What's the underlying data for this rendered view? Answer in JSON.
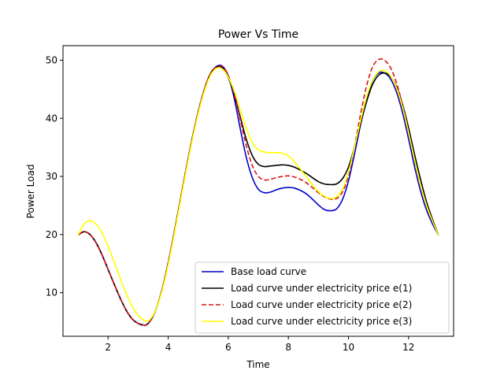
{
  "chart_data": {
    "type": "line",
    "title": "Power Vs Time",
    "xlabel": "Time",
    "ylabel": "Power Load",
    "xlim": [
      0.5,
      13.5
    ],
    "ylim": [
      2.5,
      52.5
    ],
    "xticks": [
      2,
      4,
      6,
      8,
      10,
      12
    ],
    "yticks": [
      10,
      20,
      30,
      40,
      50
    ],
    "grid": false,
    "legend_position": "lower-right",
    "x": [
      1.0,
      1.2,
      1.4,
      1.6,
      1.8,
      2.0,
      2.2,
      2.4,
      2.6,
      2.8,
      3.0,
      3.2,
      3.25,
      3.4,
      3.6,
      3.8,
      4.0,
      4.2,
      4.4,
      4.6,
      4.8,
      5.0,
      5.2,
      5.4,
      5.6,
      5.8,
      6.0,
      6.2,
      6.4,
      6.6,
      6.8,
      7.0,
      7.2,
      7.4,
      7.6,
      7.8,
      8.0,
      8.2,
      8.4,
      8.6,
      8.8,
      9.0,
      9.2,
      9.4,
      9.6,
      9.8,
      10.0,
      10.2,
      10.4,
      10.6,
      10.8,
      11.0,
      11.2,
      11.4,
      11.6,
      11.8,
      12.0,
      12.2,
      12.4,
      12.6,
      12.8,
      13.0
    ],
    "series": [
      {
        "name": "Base load curve",
        "color": "#0000cc",
        "dash": "solid",
        "values": [
          19.9,
          20.5,
          20.0,
          18.6,
          16.5,
          14.0,
          11.5,
          9.1,
          7.0,
          5.5,
          4.7,
          4.4,
          4.4,
          5.1,
          7.2,
          10.6,
          15.1,
          20.3,
          25.8,
          31.3,
          36.5,
          41.1,
          44.9,
          47.6,
          48.9,
          49.0,
          47.3,
          43.4,
          38.2,
          33.3,
          29.8,
          27.8,
          27.2,
          27.3,
          27.7,
          28.0,
          28.1,
          28.0,
          27.6,
          27.0,
          26.1,
          25.1,
          24.3,
          24.1,
          24.4,
          26.0,
          29.2,
          33.8,
          38.8,
          43.2,
          46.4,
          47.8,
          47.8,
          46.8,
          44.5,
          41.0,
          36.5,
          31.7,
          27.5,
          24.2,
          21.8,
          19.9
        ]
      },
      {
        "name": "Load curve under electricity price e(1)",
        "color": "#000000",
        "dash": "solid",
        "values": [
          19.9,
          20.5,
          20.0,
          18.6,
          16.5,
          14.0,
          11.5,
          9.1,
          7.0,
          5.5,
          4.7,
          4.4,
          4.4,
          5.1,
          7.2,
          10.6,
          15.1,
          20.3,
          25.8,
          31.3,
          36.5,
          41.1,
          44.9,
          47.6,
          48.8,
          48.7,
          47.0,
          44.1,
          40.2,
          36.4,
          33.6,
          32.1,
          31.7,
          31.8,
          31.9,
          32.0,
          31.9,
          31.6,
          31.1,
          30.5,
          29.8,
          29.1,
          28.7,
          28.6,
          28.7,
          29.6,
          31.6,
          35.0,
          39.0,
          42.8,
          45.8,
          47.4,
          47.8,
          47.2,
          45.4,
          42.4,
          38.4,
          33.8,
          29.5,
          25.6,
          22.6,
          19.9
        ]
      },
      {
        "name": "Load curve under electricity price e(2)",
        "color": "#dd1111",
        "dash": "dashed",
        "values": [
          19.9,
          20.5,
          20.0,
          18.6,
          16.5,
          14.0,
          11.5,
          9.1,
          7.0,
          5.5,
          4.7,
          4.4,
          4.4,
          5.1,
          7.2,
          10.6,
          15.1,
          20.3,
          25.8,
          31.3,
          36.5,
          41.1,
          44.9,
          47.6,
          48.8,
          48.9,
          47.4,
          44.2,
          39.8,
          35.3,
          31.9,
          30.0,
          29.4,
          29.5,
          29.8,
          30.0,
          30.1,
          29.9,
          29.5,
          28.9,
          28.1,
          27.2,
          26.5,
          26.1,
          26.2,
          27.3,
          30.2,
          35.1,
          40.6,
          45.5,
          48.8,
          50.1,
          50.0,
          48.7,
          46.1,
          42.3,
          37.7,
          32.8,
          28.5,
          25.0,
          22.3,
          19.9
        ]
      },
      {
        "name": "Load curve under electricity price e(3)",
        "color": "#ffff00",
        "dash": "solid",
        "values": [
          19.9,
          21.8,
          22.4,
          21.8,
          20.3,
          18.0,
          15.3,
          12.5,
          9.9,
          7.7,
          6.1,
          5.2,
          5.1,
          5.4,
          7.2,
          10.4,
          14.8,
          20.0,
          25.5,
          31.0,
          36.2,
          40.8,
          44.6,
          47.3,
          48.6,
          48.5,
          47.1,
          44.7,
          41.5,
          38.3,
          35.8,
          34.6,
          34.2,
          34.1,
          34.1,
          34.0,
          33.5,
          32.6,
          31.3,
          29.9,
          28.6,
          27.4,
          26.6,
          26.2,
          26.5,
          27.8,
          30.7,
          35.0,
          39.5,
          43.6,
          46.5,
          48.0,
          48.2,
          47.3,
          45.2,
          41.9,
          37.6,
          32.9,
          28.6,
          25.0,
          22.3,
          19.9
        ]
      }
    ]
  }
}
